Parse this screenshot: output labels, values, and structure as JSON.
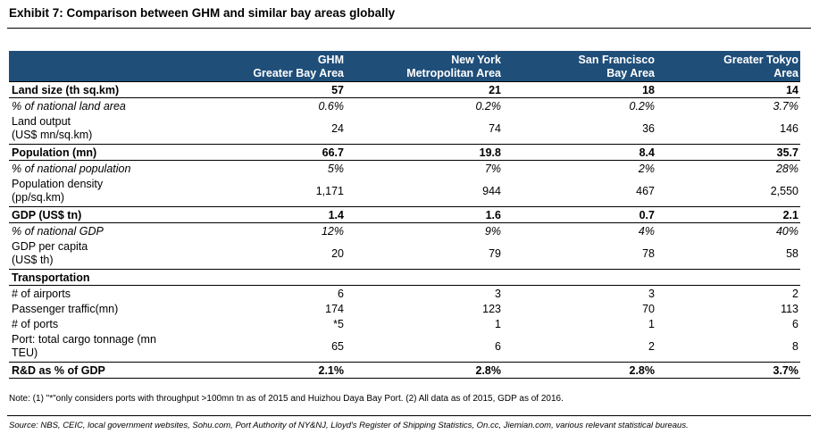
{
  "title": "Exhibit 7: Comparison between GHM and similar bay areas globally",
  "columns": [
    {
      "line1": "GHM",
      "line2": "Greater Bay Area"
    },
    {
      "line1": "New York",
      "line2": "Metropolitan Area"
    },
    {
      "line1": "San Francisco",
      "line2": "Bay Area"
    },
    {
      "line1": "Greater Tokyo",
      "line2": "Area"
    }
  ],
  "rows": [
    {
      "label": "Land size (th sq.km)",
      "values": [
        "57",
        "21",
        "18",
        "14"
      ]
    },
    {
      "label": "% of national land area",
      "values": [
        "0.6%",
        "0.2%",
        "0.2%",
        "3.7%"
      ]
    },
    {
      "label": "Land output",
      "label2": "(US$ mn/sq.km)",
      "values": [
        "24",
        "74",
        "36",
        "146"
      ]
    },
    {
      "label": "Population (mn)",
      "values": [
        "66.7",
        "19.8",
        "8.4",
        "35.7"
      ]
    },
    {
      "label": "% of national population",
      "values": [
        "5%",
        "7%",
        "2%",
        "28%"
      ]
    },
    {
      "label": "Population density",
      "label2": "(pp/sq.km)",
      "values": [
        "1,171",
        "944",
        "467",
        "2,550"
      ]
    },
    {
      "label": "GDP (US$ tn)",
      "values": [
        "1.4",
        "1.6",
        "0.7",
        "2.1"
      ]
    },
    {
      "label": "% of national GDP",
      "values": [
        "12%",
        "9%",
        "4%",
        "40%"
      ]
    },
    {
      "label": "GDP per capita",
      "label2": "(US$ th)",
      "values": [
        "20",
        "79",
        "78",
        "58"
      ]
    },
    {
      "label": "Transportation"
    },
    {
      "label": "# of airports",
      "values": [
        "6",
        "3",
        "3",
        "2"
      ]
    },
    {
      "label": "Passenger traffic(mn)",
      "values": [
        "174",
        "123",
        "70",
        "113"
      ]
    },
    {
      "label": "# of ports",
      "values": [
        "*5",
        "1",
        "1",
        "6"
      ]
    },
    {
      "label": "Port: total cargo tonnage (mn",
      "label2": "TEU)",
      "values": [
        "65",
        "6",
        "2",
        "8"
      ]
    },
    {
      "label": "R&D as % of GDP",
      "values": [
        "2.1%",
        "2.8%",
        "2.8%",
        "3.7%"
      ]
    }
  ],
  "note": "Note: (1) \"*\"only considers ports with throughput >100mn tn as of 2015 and Huizhou Daya Bay Port. (2) All data as of 2015, GDP as of 2016.",
  "source": "Source: NBS, CEIC, local government websites, Sohu.com, Port Authority of NY&NJ, Lloyd's Register of Shipping Statistics, On.cc, Jiemian.com, various relevant statistical bureaus.",
  "colors": {
    "header_bg": "#1f4e79",
    "header_text": "#ffffff"
  }
}
